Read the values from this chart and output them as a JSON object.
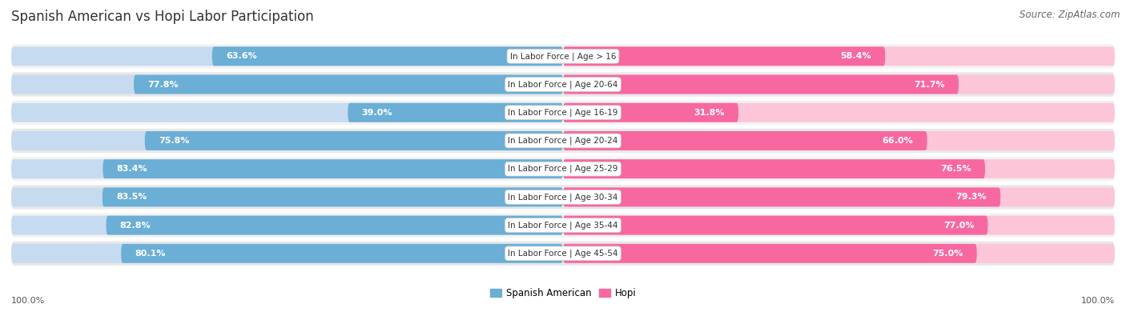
{
  "title": "Spanish American vs Hopi Labor Participation",
  "source": "Source: ZipAtlas.com",
  "categories": [
    "In Labor Force | Age > 16",
    "In Labor Force | Age 20-64",
    "In Labor Force | Age 16-19",
    "In Labor Force | Age 20-24",
    "In Labor Force | Age 25-29",
    "In Labor Force | Age 30-34",
    "In Labor Force | Age 35-44",
    "In Labor Force | Age 45-54"
  ],
  "spanish_values": [
    63.6,
    77.8,
    39.0,
    75.8,
    83.4,
    83.5,
    82.8,
    80.1
  ],
  "hopi_values": [
    58.4,
    71.7,
    31.8,
    66.0,
    76.5,
    79.3,
    77.0,
    75.0
  ],
  "spanish_color": "#6baed6",
  "hopi_color": "#f768a1",
  "spanish_light_color": "#c6dbef",
  "hopi_light_color": "#fcc5d8",
  "row_bg_even": "#f2f2f2",
  "row_bg_odd": "#e8e8e8",
  "max_value": 100.0,
  "legend_spanish": "Spanish American",
  "legend_hopi": "Hopi",
  "bottom_label": "100.0%",
  "title_fontsize": 12,
  "source_fontsize": 8.5,
  "value_fontsize": 8,
  "category_fontsize": 7.5,
  "figsize": [
    14.06,
    3.95
  ],
  "dpi": 100
}
